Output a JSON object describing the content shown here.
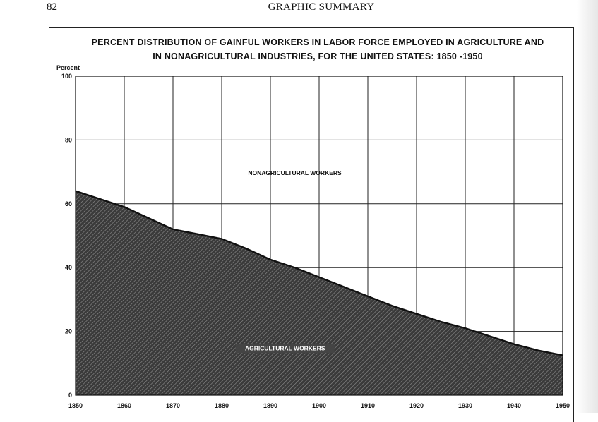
{
  "page": {
    "number": "82",
    "running_head": "GRAPHIC SUMMARY"
  },
  "chart_data": {
    "type": "area",
    "title_lines": [
      "PERCENT DISTRIBUTION OF GAINFUL WORKERS IN LABOR FORCE EMPLOYED IN AGRICULTURE AND",
      "IN NONAGRICULTURAL INDUSTRIES, FOR THE UNITED STATES: 1850 -1950"
    ],
    "ylabel": "Percent",
    "xlim": [
      1850,
      1950
    ],
    "ylim": [
      0,
      100
    ],
    "x_ticks": [
      "1850",
      "1860",
      "1870",
      "1880",
      "1890",
      "1900",
      "1910",
      "1920",
      "1930",
      "1940",
      "1950"
    ],
    "y_ticks": [
      "0",
      "20",
      "40",
      "60",
      "80",
      "100"
    ],
    "grid": true,
    "x": [
      1850,
      1855,
      1860,
      1865,
      1870,
      1875,
      1880,
      1885,
      1890,
      1895,
      1900,
      1905,
      1910,
      1915,
      1920,
      1925,
      1930,
      1935,
      1940,
      1945,
      1950
    ],
    "series": [
      {
        "name": "AGRICULTURAL WORKERS",
        "values": [
          64,
          61.5,
          59,
          55.5,
          52,
          50.5,
          49,
          46,
          42.5,
          40,
          37,
          34,
          31,
          28,
          25.5,
          23,
          21,
          18.5,
          16,
          14,
          12.5
        ]
      }
    ],
    "annotations": [
      {
        "text": "NONAGRICULTURAL WORKERS",
        "x": 1895,
        "y": 69
      },
      {
        "text": "AGRICULTURAL WORKERS",
        "x": 1893,
        "y": 14
      }
    ],
    "colors": {
      "agriculture_fill": "#3a3a3a",
      "agriculture_hatch": "#8a8a8a",
      "line": "#111111",
      "grid": "#222222"
    }
  }
}
